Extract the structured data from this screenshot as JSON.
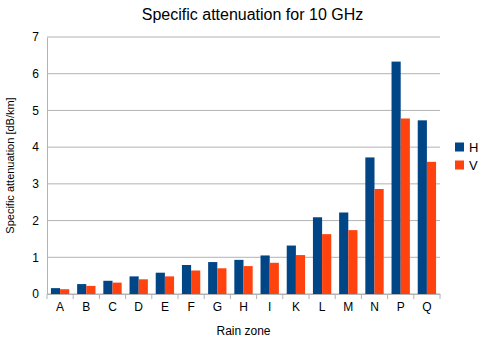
{
  "chart_data": {
    "type": "bar",
    "title": "Specific attenuation for 10 GHz",
    "x_label": "Rain zone",
    "y_label": "Specific attenuation [dB/km]",
    "categories": [
      "A",
      "B",
      "C",
      "D",
      "E",
      "F",
      "G",
      "H",
      "I",
      "K",
      "L",
      "M",
      "N",
      "P",
      "Q"
    ],
    "series": [
      {
        "name": "H",
        "color": "#004586",
        "values": [
          0.16,
          0.27,
          0.36,
          0.48,
          0.58,
          0.79,
          0.87,
          0.93,
          1.05,
          1.32,
          2.09,
          2.22,
          3.72,
          6.33,
          4.73
        ]
      },
      {
        "name": "V",
        "color": "#ff420e",
        "values": [
          0.13,
          0.22,
          0.31,
          0.4,
          0.48,
          0.64,
          0.7,
          0.76,
          0.85,
          1.06,
          1.63,
          1.74,
          2.86,
          4.78,
          3.6
        ]
      }
    ],
    "ylim": [
      0,
      7
    ],
    "yticks": [
      0,
      1,
      2,
      3,
      4,
      5,
      6,
      7
    ],
    "grid": true,
    "legend": "right"
  }
}
